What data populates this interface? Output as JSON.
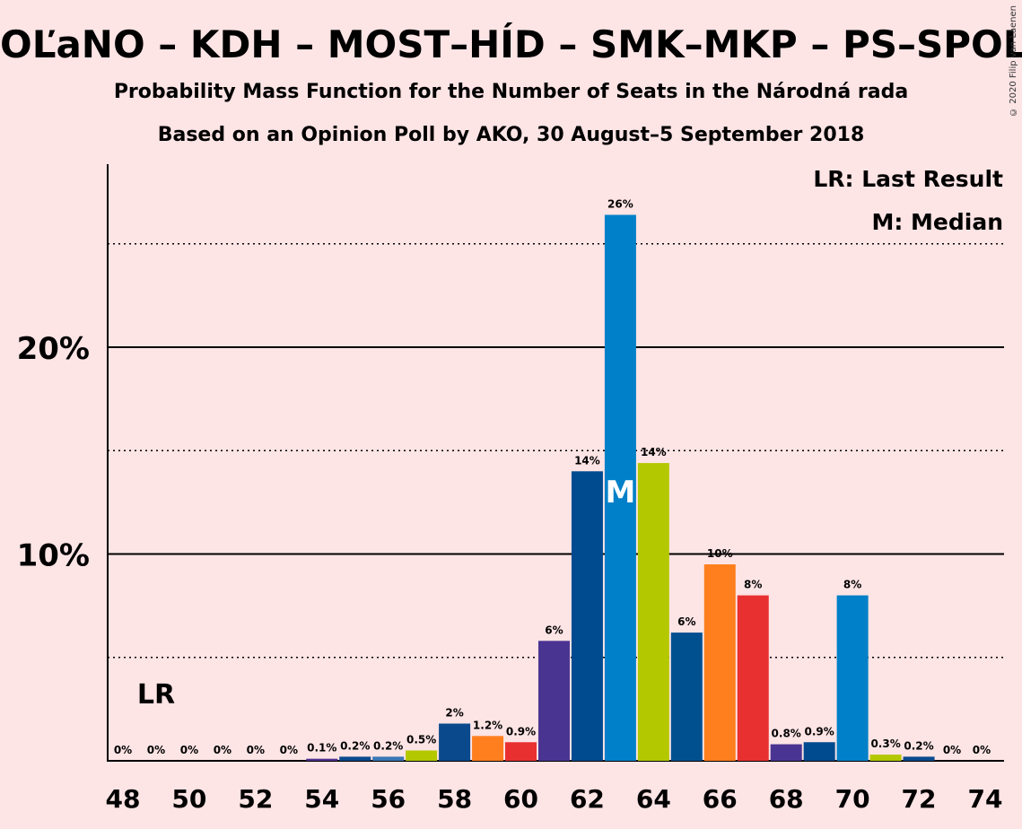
{
  "title": "OĽaNO – KDH – MOST–HÍD – SMK–MKP – PS–SPOLU",
  "subtitle1": "Probability Mass Function for the Number of Seats in the Národná rada",
  "subtitle2": "Based on an Opinion Poll by AKO, 30 August–5 September 2018",
  "copyright": "© 2020 Filip van Laenen",
  "chart_data": {
    "type": "bar",
    "x": [
      48,
      49,
      50,
      51,
      52,
      53,
      54,
      55,
      56,
      57,
      58,
      59,
      60,
      61,
      62,
      63,
      64,
      65,
      66,
      67,
      68,
      69,
      70,
      71,
      72,
      73,
      74
    ],
    "values": [
      0,
      0,
      0,
      0,
      0,
      0,
      0.1,
      0.2,
      0.2,
      0.5,
      1.8,
      1.2,
      0.9,
      5.8,
      14.0,
      26.4,
      14.4,
      6.2,
      9.5,
      8.0,
      0.8,
      0.9,
      8.0,
      0.3,
      0.2,
      0,
      0
    ],
    "labels": [
      "0%",
      "0%",
      "0%",
      "0%",
      "0%",
      "0%",
      "0.1%",
      "0.2%",
      "0.2%",
      "0.5%",
      "2%",
      "1.2%",
      "0.9%",
      "6%",
      "14%",
      "26%",
      "14%",
      "6%",
      "10%",
      "8%",
      "0.8%",
      "0.9%",
      "8%",
      "0.3%",
      "0.2%",
      "0%",
      "0%"
    ],
    "colors": [
      "#4f2f8f",
      "#4f2f8f",
      "#4f2f8f",
      "#4f2f8f",
      "#4f2f8f",
      "#4f2f8f",
      "#4f2f8f",
      "#0a4a8c",
      "#3a76b4",
      "#b4c800",
      "#0a4a8c",
      "#ff7f1e",
      "#e83030",
      "#4a3492",
      "#004a90",
      "#0080c8",
      "#b4c800",
      "#005090",
      "#ff7f1e",
      "#e83030",
      "#4a3492",
      "#004a90",
      "#0080c8",
      "#b4c800",
      "#0a4a8c",
      "#0a4a8c",
      "#0a4a8c"
    ],
    "xtick_labels": [
      "48",
      "50",
      "52",
      "54",
      "56",
      "58",
      "60",
      "62",
      "64",
      "66",
      "68",
      "70",
      "72",
      "74"
    ],
    "ytick_labels": [
      "10%",
      "20%"
    ],
    "ylim": [
      0,
      28
    ],
    "solid_gridlines": [
      10,
      20
    ],
    "dotted_gridlines": [
      5,
      15,
      25
    ],
    "last_result_seat": 49,
    "last_result_label": "LR",
    "median_seat": 63,
    "median_label": "M",
    "legend": [
      "LR: Last Result",
      "M: Median"
    ],
    "legend_position": "top-right"
  }
}
